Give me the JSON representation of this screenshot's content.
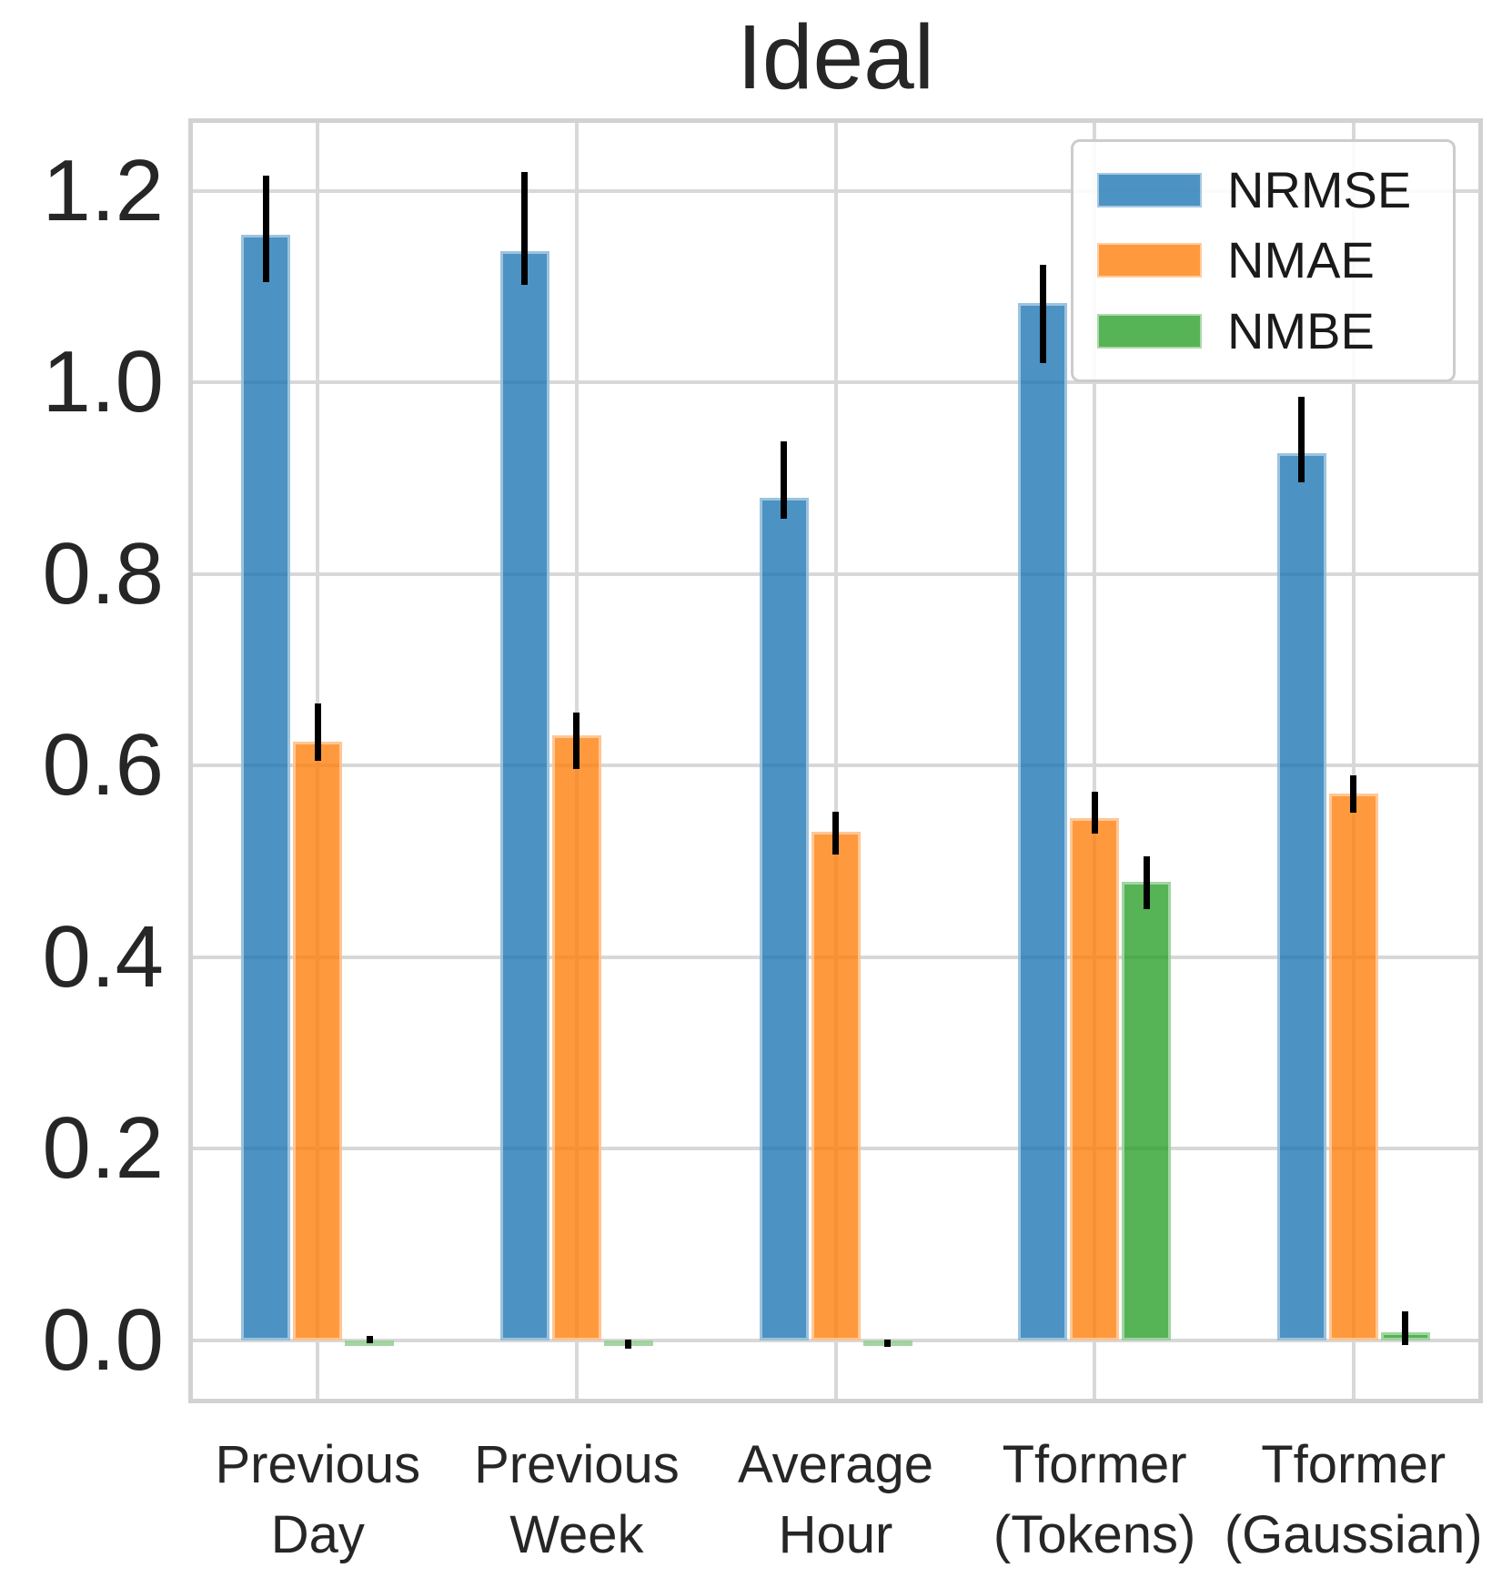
{
  "title": "Ideal",
  "legend": {
    "items": [
      {
        "label": "NRMSE",
        "color": "rgba(31,119,180,0.8)",
        "color_hex": "#4B91C3"
      },
      {
        "label": "NMAE",
        "color": "rgba(255,127,14,0.8)",
        "color_hex": "#FF993E"
      },
      {
        "label": "NMBE",
        "color": "rgba(44,160,44,0.8)",
        "color_hex": "#56B256"
      }
    ]
  },
  "axes": {
    "y_tick_labels": [
      "0.0",
      "0.2",
      "0.4",
      "0.6",
      "0.8",
      "1.0",
      "1.2"
    ],
    "y_tick_values": [
      0,
      0.2,
      0.4,
      0.6,
      0.8,
      1.0,
      1.2
    ]
  },
  "chart_data": {
    "type": "bar",
    "title": "Ideal",
    "categories": [
      "Previous Day",
      "Previous Week",
      "Average Hour",
      "Tformer (Tokens)",
      "Tformer (Gaussian)"
    ],
    "category_label_lines": [
      [
        "Previous",
        "Day"
      ],
      [
        "Previous",
        "Week"
      ],
      [
        "Average",
        "Hour"
      ],
      [
        "Tformer",
        "(Tokens)"
      ],
      [
        "Tformer",
        "(Gaussian)"
      ]
    ],
    "series": [
      {
        "name": "NRMSE",
        "color": "rgba(31,119,180,0.8)",
        "values": [
          1.154,
          1.137,
          0.88,
          1.083,
          0.926
        ],
        "error_low": [
          1.105,
          1.102,
          0.858,
          1.02,
          0.896
        ],
        "error_high": [
          1.216,
          1.22,
          0.939,
          1.123,
          0.985
        ]
      },
      {
        "name": "NMAE",
        "color": "rgba(255,127,14,0.8)",
        "values": [
          0.625,
          0.632,
          0.531,
          0.545,
          0.571
        ],
        "error_low": [
          0.605,
          0.596,
          0.507,
          0.529,
          0.551
        ],
        "error_high": [
          0.665,
          0.655,
          0.552,
          0.573,
          0.59
        ]
      },
      {
        "name": "NMBE",
        "color": "rgba(44,160,44,0.8)",
        "values": [
          0.0,
          -0.004,
          -0.003,
          0.479,
          0.008
        ],
        "error_low": [
          -0.003,
          -0.009,
          -0.007,
          0.45,
          -0.005
        ],
        "error_high": [
          0.004,
          0.001,
          0.001,
          0.505,
          0.03
        ]
      }
    ],
    "ylim": [
      -0.066,
      1.276
    ],
    "grid": true,
    "legend_position": "upper right",
    "error_bar_color": "#000000"
  }
}
